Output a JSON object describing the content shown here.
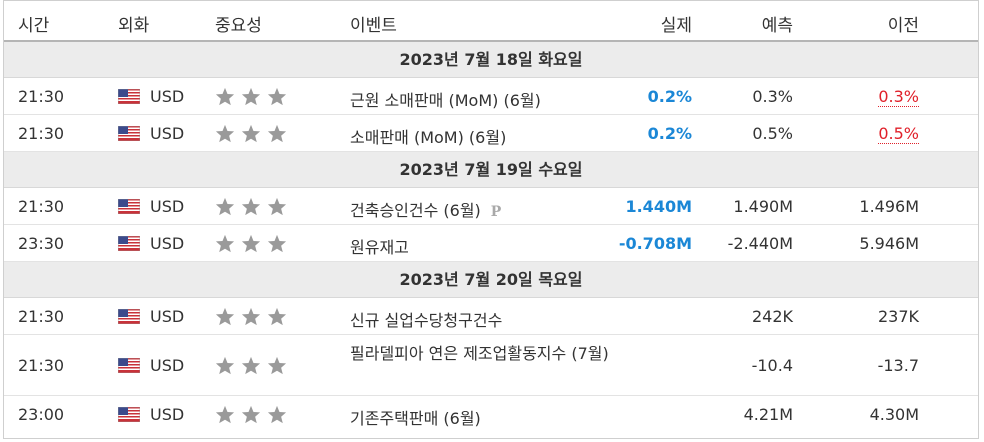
{
  "headers": {
    "time": "시간",
    "currency": "외화",
    "importance": "중요성",
    "event": "이벤트",
    "actual": "실제",
    "forecast": "예측",
    "previous": "이전"
  },
  "days": [
    {
      "label": "2023년 7월 18일 화요일",
      "rows": [
        {
          "time": "21:30",
          "currency": "USD",
          "stars": 3,
          "event": "근원 소매판매 (MoM) (6월)",
          "actual": "0.2%",
          "forecast": "0.3%",
          "previous": "0.3%"
        },
        {
          "time": "21:30",
          "currency": "USD",
          "stars": 3,
          "event": "소매판매 (MoM) (6월)",
          "actual": "0.2%",
          "forecast": "0.5%",
          "previous": "0.5%"
        }
      ]
    },
    {
      "label": "2023년 7월 19일 수요일",
      "rows": [
        {
          "time": "21:30",
          "currency": "USD",
          "stars": 3,
          "event": "건축승인건수 (6월)",
          "preliminary_mark": "P",
          "actual": "1.440M",
          "forecast": "1.490M",
          "previous": "1.496M"
        },
        {
          "time": "23:30",
          "currency": "USD",
          "stars": 3,
          "event": "원유재고",
          "actual": "-0.708M",
          "forecast": "-2.440M",
          "previous": "5.946M"
        }
      ]
    },
    {
      "label": "2023년 7월 20일 목요일",
      "rows": [
        {
          "time": "21:30",
          "currency": "USD",
          "stars": 3,
          "event": "신규 실업수당청구건수",
          "actual": "",
          "forecast": "242K",
          "previous": "237K"
        },
        {
          "time": "21:30",
          "currency": "USD",
          "stars": 3,
          "event": "필라델피아 연은 제조업활동지수 (7월)",
          "actual": "",
          "forecast": "-10.4",
          "previous": "-13.7"
        },
        {
          "time": "23:00",
          "currency": "USD",
          "stars": 3,
          "event": "기존주택판매 (6월)",
          "actual": "",
          "forecast": "4.21M",
          "previous": "4.30M"
        }
      ]
    }
  ],
  "colors": {
    "actual": "#1b87d6",
    "previous_revised": "#e0202a",
    "star": "#9a9a9a",
    "day_band": "#ececec"
  },
  "icons": {
    "flag": "us-flag-icon",
    "star": "star-icon"
  }
}
